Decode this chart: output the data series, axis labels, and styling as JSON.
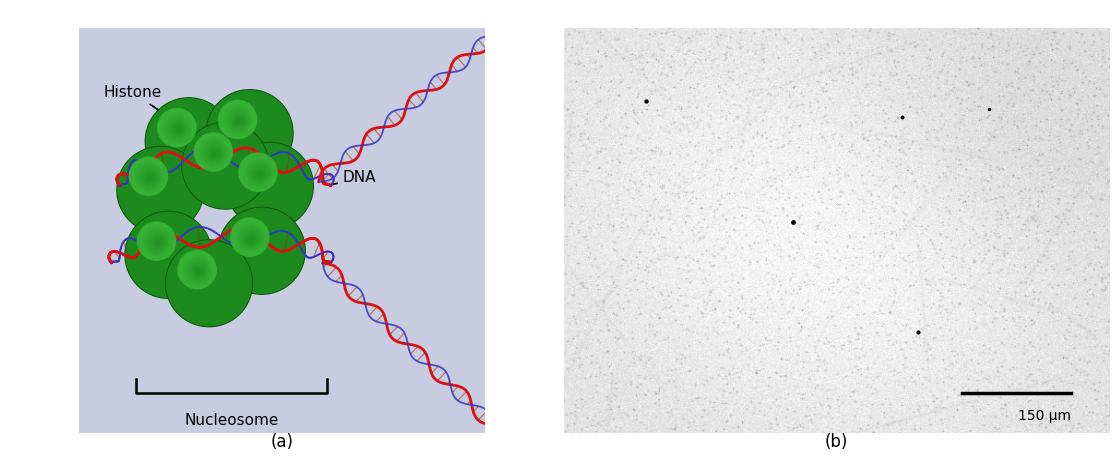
{
  "fig_width": 11.17,
  "fig_height": 4.61,
  "dpi": 100,
  "panel_a_bg": "#c8cce0",
  "label_a": "(a)",
  "label_b": "(b)",
  "label_fontsize": 12,
  "histone_label": "Histone",
  "dna_label": "DNA",
  "nucleosome_label": "Nucleosome",
  "annotation_fontsize": 11,
  "scale_bar_label": "150 μm",
  "scale_bar_fontsize": 10,
  "histone_color_dark": "#0d5c0d",
  "histone_color_mid": "#1e8c1e",
  "histone_color_light": "#3ab83a",
  "dna_color_red": "#dd1111",
  "dna_color_blue": "#3333cc"
}
